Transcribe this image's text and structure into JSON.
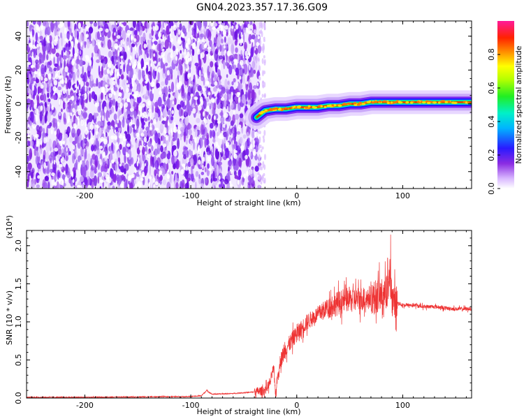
{
  "title": "GN04.2023.357.17.36.G09",
  "colors": {
    "snr_line": "#ee3333",
    "axis": "#000000"
  },
  "chart_data": [
    {
      "type": "heatmap",
      "xlabel": "Height of straight line (km)",
      "ylabel": "Frequency (Hz)",
      "xlim": [
        -255,
        165
      ],
      "ylim": [
        -50,
        49
      ],
      "x_ticks": [
        -200,
        -100,
        0,
        100
      ],
      "y_ticks": [
        -40,
        -20,
        0,
        20,
        40
      ],
      "x_tick_labels": [
        "-200",
        "-100",
        "0",
        "100"
      ],
      "y_tick_labels": [
        "-40",
        "-20",
        "0",
        "20",
        "40"
      ],
      "colorbar": {
        "label": "Normalized spectral amplitude",
        "range": [
          0.0,
          1.0
        ],
        "ticks": [
          0.0,
          0.2,
          0.4,
          0.6,
          0.8
        ],
        "tick_labels": [
          "0.0",
          "0.2",
          "0.4",
          "0.6",
          "0.8"
        ]
      },
      "noise_region_x": [
        -255,
        -35
      ],
      "signal_trace": {
        "x": [
          -38,
          -30,
          -20,
          -10,
          0,
          10,
          20,
          30,
          40,
          50,
          60,
          70,
          80,
          90,
          100,
          110,
          120,
          130,
          140,
          150,
          165
        ],
        "freq": [
          -8,
          -4,
          -3,
          -3,
          -2,
          -2,
          -2,
          -1,
          -1,
          0,
          0,
          1,
          1,
          1,
          1,
          1,
          1,
          1,
          1,
          1,
          1
        ]
      }
    },
    {
      "type": "line",
      "xlabel": "Height of straight line (km)",
      "ylabel": "SNR (10 * v/v)",
      "y_multiplier_label": "(x10⁴)",
      "xlim": [
        -255,
        165
      ],
      "ylim": [
        0,
        2.2
      ],
      "x_ticks": [
        -200,
        -100,
        0,
        100
      ],
      "y_ticks": [
        0.0,
        0.5,
        1.0,
        1.5,
        2.0
      ],
      "x_tick_labels": [
        "-200",
        "-100",
        "0",
        "100"
      ],
      "y_tick_labels": [
        "0.0",
        "0.5",
        "1.0",
        "1.5",
        "2.0"
      ],
      "series": [
        {
          "x": [
            -255,
            -200,
            -150,
            -100,
            -90,
            -85,
            -80,
            -60,
            -40,
            -30,
            -25,
            -22,
            -20,
            -18,
            -15,
            -10,
            0,
            10,
            20,
            30,
            40,
            50,
            60,
            70,
            80,
            85,
            88,
            90,
            95,
            100,
            110,
            120,
            130,
            140,
            150,
            165
          ],
          "values": [
            0.01,
            0.01,
            0.015,
            0.02,
            0.03,
            0.1,
            0.05,
            0.06,
            0.08,
            0.1,
            0.2,
            0.4,
            0.05,
            0.3,
            0.5,
            0.65,
            0.85,
            1.0,
            1.1,
            1.2,
            1.25,
            1.3,
            1.3,
            1.32,
            1.35,
            1.4,
            1.5,
            1.3,
            1.25,
            1.22,
            1.22,
            1.2,
            1.2,
            1.18,
            1.17,
            1.17
          ]
        }
      ]
    }
  ]
}
